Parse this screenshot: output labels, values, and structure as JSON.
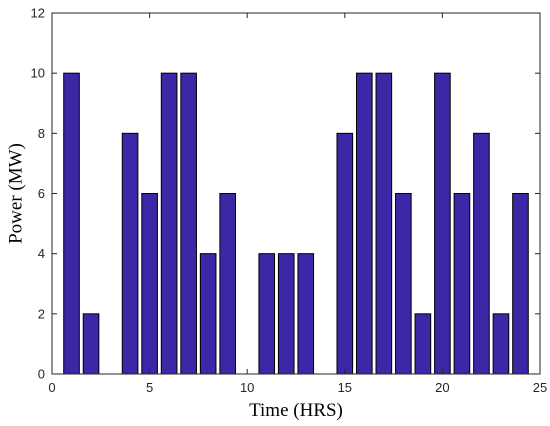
{
  "chart_data": {
    "type": "bar",
    "title": "",
    "xlabel": "Time (HRS)",
    "ylabel": "Power (MW)",
    "x": [
      1,
      2,
      3,
      4,
      5,
      6,
      7,
      8,
      9,
      10,
      11,
      12,
      13,
      14,
      15,
      16,
      17,
      18,
      19,
      20,
      21,
      22,
      23,
      24
    ],
    "values": [
      10,
      2,
      0,
      8,
      6,
      10,
      10,
      4,
      6,
      0,
      4,
      4,
      4,
      0,
      8,
      10,
      10,
      6,
      2,
      10,
      6,
      8,
      2,
      6
    ],
    "xlim": [
      0,
      25
    ],
    "ylim": [
      0,
      12
    ],
    "xticks": [
      0,
      5,
      10,
      15,
      20,
      25
    ],
    "yticks": [
      0,
      2,
      4,
      6,
      8,
      10,
      12
    ],
    "xtick_labels": [
      "0",
      "5",
      "10",
      "15",
      "20",
      "25"
    ],
    "ytick_labels": [
      "0",
      "2",
      "4",
      "6",
      "8",
      "10",
      "12"
    ],
    "grid": false,
    "bar_color": "#3c28a6",
    "edge_color": "#000000"
  }
}
